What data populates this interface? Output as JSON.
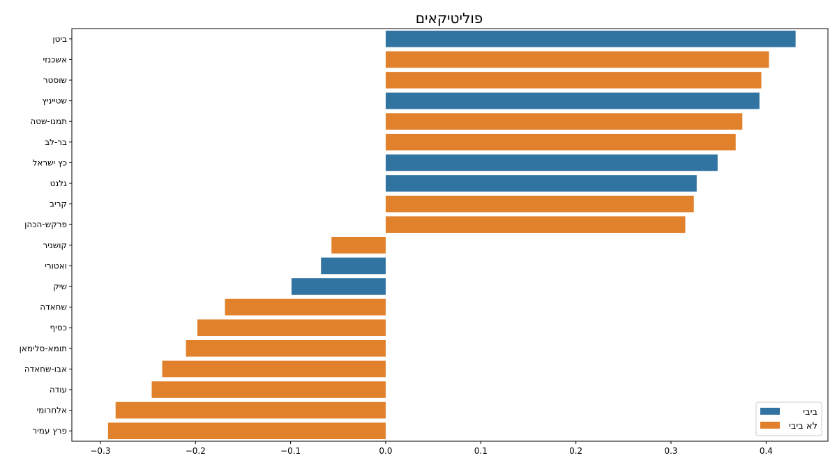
{
  "chart_data": {
    "type": "bar",
    "orientation": "horizontal",
    "title": "פוליטיקאים",
    "xlabel": "",
    "ylabel": "",
    "xlim": [
      -0.33,
      0.465
    ],
    "xticks": [
      -0.3,
      -0.2,
      -0.1,
      0.0,
      0.1,
      0.2,
      0.3,
      0.4
    ],
    "xtick_labels": [
      "−0.3",
      "−0.2",
      "−0.1",
      "0.0",
      "0.1",
      "0.2",
      "0.3",
      "0.4"
    ],
    "grid": false,
    "legend_position": "bottom-right",
    "series": [
      {
        "name": "ביבי",
        "color": "#3274a1"
      },
      {
        "name": "לא ביבי",
        "color": "#e1812c"
      }
    ],
    "categories": [
      "ביטן",
      "אשכנזי",
      "שוסטר",
      "שטייניץ",
      "תמנו-שטה",
      "בר-לב",
      "כץ ישראל",
      "גלנט",
      "קריב",
      "פרקש-הכהן",
      "קושניר",
      "ואטורי",
      "שיק",
      "שחאדה",
      "כסיף",
      "תומא-סלימאן",
      "אבו-שחאדה",
      "עודה",
      "אלחרומי",
      "פרץ עמיר"
    ],
    "values": [
      0.431,
      0.403,
      0.395,
      0.393,
      0.375,
      0.368,
      0.349,
      0.327,
      0.324,
      0.315,
      -0.057,
      -0.068,
      -0.099,
      -0.169,
      -0.198,
      -0.21,
      -0.235,
      -0.246,
      -0.284,
      -0.292
    ],
    "groups": [
      "ביבי",
      "לא ביבי",
      "לא ביבי",
      "ביבי",
      "לא ביבי",
      "לא ביבי",
      "ביבי",
      "ביבי",
      "לא ביבי",
      "לא ביבי",
      "לא ביבי",
      "ביבי",
      "ביבי",
      "לא ביבי",
      "לא ביבי",
      "לא ביבי",
      "לא ביבי",
      "לא ביבי",
      "לא ביבי",
      "לא ביבי"
    ]
  }
}
